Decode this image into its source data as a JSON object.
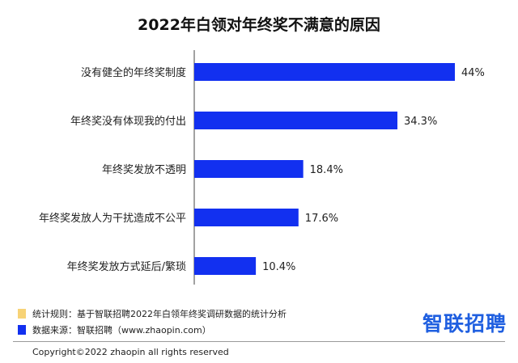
{
  "chart_data": {
    "type": "bar",
    "orientation": "horizontal",
    "title": "2022年白领对年终奖不满意的原因",
    "categories": [
      "没有健全的年终奖制度",
      "年终奖没有体现我的付出",
      "年终奖发放不透明",
      "年终奖发放人为干扰造成不公平",
      "年终奖发放方式延后/繁琐"
    ],
    "values": [
      44,
      34.3,
      18.4,
      17.6,
      10.4
    ],
    "value_labels": [
      "44%",
      "34.3%",
      "18.4%",
      "17.6%",
      "10.4%"
    ],
    "unit": "%",
    "xlim": [
      0,
      44
    ],
    "bar_color": "#1230f0",
    "grid": false,
    "legend": "none"
  },
  "notes": {
    "stat_rule": "统计规则：基于智联招聘2022年白领年终奖调研数据的统计分析",
    "stat_rule_color": "#f7d377",
    "source": "数据来源：智联招聘（www.zhaopin.com）",
    "source_color": "#1230f0"
  },
  "logo": "智联招聘",
  "copyright": "Copyright©2022 zhaopin all rights reserved"
}
